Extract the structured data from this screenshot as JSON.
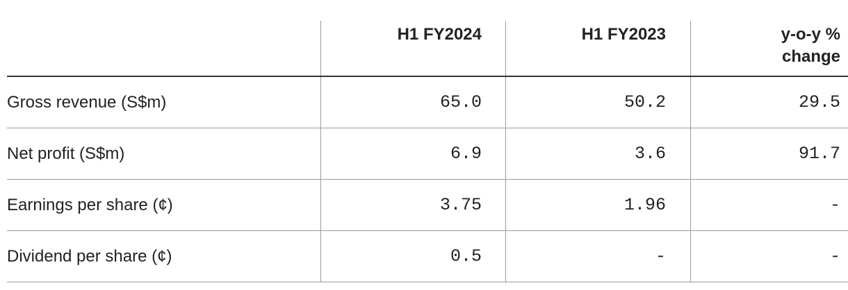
{
  "table": {
    "header": [
      "H1 FY2024",
      "H1 FY2023",
      "y-o-y % change"
    ],
    "rows": [
      [
        "Gross revenue (S$m)",
        "65.0",
        "50.2",
        "29.5"
      ],
      [
        "Net profit (S$m)",
        "6.9",
        "3.6",
        "91.7"
      ],
      [
        "Earnings per share (¢)",
        "3.75",
        "1.96",
        "-"
      ],
      [
        "Dividend per share (¢)",
        "0.5",
        "-",
        "-"
      ]
    ]
  }
}
